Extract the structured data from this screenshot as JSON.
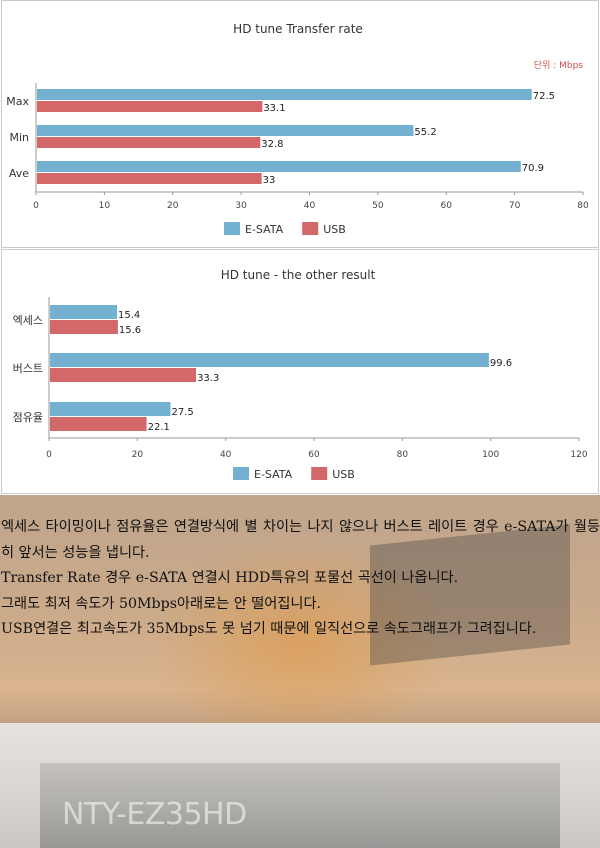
{
  "chart_data": [
    {
      "type": "bar",
      "orientation": "horizontal",
      "title": "HD tune Transfer rate",
      "unit_note": "단위 : Mbps",
      "categories": [
        "Max",
        "Min",
        "Ave"
      ],
      "series": [
        {
          "name": "E-SATA",
          "values": [
            72.5,
            55.2,
            70.9
          ],
          "color": "#74b0d0"
        },
        {
          "name": "USB",
          "values": [
            33.1,
            32.8,
            33
          ],
          "value_labels": [
            "33.1",
            "32.8",
            "33"
          ],
          "color": "#d46868"
        }
      ],
      "xlim": [
        0,
        80
      ],
      "ticks": [
        0,
        10,
        20,
        30,
        40,
        50,
        60,
        70,
        80
      ],
      "legend": "bottom",
      "grid": false
    },
    {
      "type": "bar",
      "orientation": "horizontal",
      "title": "HD tune - the other result",
      "categories": [
        "엑세스",
        "버스트",
        "점유율"
      ],
      "series": [
        {
          "name": "E-SATA",
          "values": [
            15.4,
            99.6,
            27.5
          ],
          "color": "#74b0d0"
        },
        {
          "name": "USB",
          "values": [
            15.6,
            33.3,
            22.1
          ],
          "color": "#d46868"
        }
      ],
      "xlim": [
        0,
        120
      ],
      "ticks": [
        0,
        20,
        40,
        60,
        80,
        100,
        120
      ],
      "legend": "bottom",
      "grid": false
    }
  ],
  "article": {
    "paragraph1": "엑세스 타이밍이나 점유율은 연결방식에 별 차이는 나지 않으나 버스트 레이트 경우 e-SATA가 월등히 앞서는 성능을 냅니다.",
    "paragraph2": "Transfer Rate 경우 e-SATA 연결시 HDD특유의 포물선 곡선이 나옵니다.",
    "paragraph3": "그래도 최저 속도가 50Mbps아래로는 안 떨어집니다.",
    "paragraph4": "USB연결은 최고속도가 35Mbps도 못 넘기 때문에 일직선으로 속도그래프가 그려집니다."
  },
  "background_photo": {
    "watermark": "NTY-EZ35HD"
  }
}
